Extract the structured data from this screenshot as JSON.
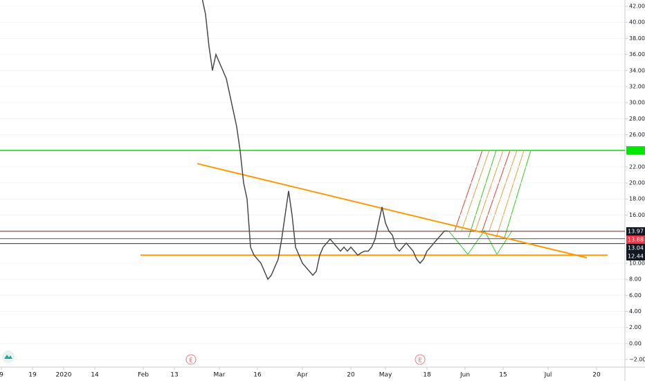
{
  "chart_data": {
    "type": "line",
    "categories": [
      "9",
      null,
      null,
      null,
      null,
      null,
      null,
      null,
      null,
      "19",
      null,
      null,
      null,
      null,
      null,
      null,
      null,
      null,
      "2020",
      null,
      null,
      null,
      null,
      null,
      null,
      null,
      null,
      "14",
      null,
      null,
      null,
      null,
      null,
      null,
      null,
      null,
      null,
      null,
      null,
      null,
      null,
      "Feb",
      null,
      null,
      null,
      null,
      null,
      null,
      null,
      null,
      "13",
      null,
      null,
      null,
      null,
      null,
      null,
      null,
      null,
      null,
      null,
      null,
      null,
      "Mar",
      null,
      null,
      null,
      null,
      null,
      null,
      null,
      null,
      null,
      null,
      "16",
      null,
      null,
      null,
      null,
      null,
      null,
      null,
      null,
      null,
      null,
      null,
      null,
      "Apr",
      null,
      null,
      null,
      null,
      null,
      null,
      null,
      null,
      null,
      null,
      null,
      null,
      null,
      "20",
      null,
      null,
      null,
      null,
      null,
      null,
      null,
      null,
      null,
      "May",
      null,
      null,
      null,
      null,
      null,
      null,
      null,
      null,
      null,
      null,
      null,
      "18",
      null,
      null,
      null,
      null,
      null,
      null,
      null,
      null,
      null,
      null,
      "Jun",
      null,
      null,
      null,
      null,
      null,
      null,
      null,
      null,
      null,
      null,
      "15",
      null,
      null,
      null,
      null,
      null,
      null,
      null,
      null,
      null,
      null,
      null,
      null,
      "Jul",
      null,
      null,
      null,
      null,
      null,
      null,
      null,
      null,
      null,
      null,
      null,
      null,
      null,
      "20",
      null,
      null,
      null,
      null,
      null,
      null,
      null,
      null
    ],
    "series": [
      {
        "color": "#4a4a4a",
        "values": [
          null,
          null,
          null,
          null,
          null,
          null,
          null,
          null,
          null,
          null,
          null,
          null,
          null,
          null,
          null,
          null,
          null,
          null,
          null,
          null,
          null,
          null,
          null,
          null,
          null,
          null,
          null,
          null,
          null,
          null,
          null,
          null,
          null,
          null,
          null,
          null,
          null,
          null,
          null,
          null,
          null,
          null,
          null,
          null,
          null,
          null,
          null,
          null,
          null,
          null,
          null,
          null,
          null,
          null,
          null,
          null,
          null,
          null,
          43,
          41,
          37,
          34,
          36,
          35,
          34,
          33,
          31,
          29,
          27,
          24,
          20,
          18,
          12,
          11,
          10.5,
          10,
          9,
          8,
          8.5,
          9.5,
          10.5,
          13,
          16,
          19,
          16,
          12,
          11,
          10,
          9.5,
          9,
          8.5,
          9,
          11,
          12,
          12.5,
          13,
          12.5,
          12,
          11.5,
          12,
          11.5,
          12,
          11.5,
          11,
          11.3,
          11.5,
          11.5,
          12,
          13,
          15,
          17,
          15,
          14,
          13.5,
          12,
          11.5,
          12,
          12.5,
          12,
          11.5,
          10.5,
          10,
          10.5,
          11.5,
          12,
          12.5,
          13,
          13.5,
          14,
          14,
          null,
          null,
          null,
          null,
          null,
          null,
          null,
          null,
          null,
          null,
          null,
          null,
          null,
          null,
          null,
          null,
          null,
          null,
          null,
          null,
          null,
          null,
          null,
          null,
          null,
          null,
          null,
          null,
          null,
          null,
          null,
          null,
          null,
          null,
          null,
          null,
          null,
          null,
          null,
          null,
          null,
          null,
          null,
          null,
          null,
          null,
          null,
          null,
          null,
          null,
          null
        ]
      }
    ],
    "ylim": [
      -2.6,
      43.3
    ],
    "yticks": [
      {
        "value": 42,
        "label": "42.00"
      },
      {
        "value": 40,
        "label": "40.00"
      },
      {
        "value": 38,
        "label": "38.00"
      },
      {
        "value": 36,
        "label": "36.00"
      },
      {
        "value": 34,
        "label": "34.00"
      },
      {
        "value": 32,
        "label": "32.00"
      },
      {
        "value": 30,
        "label": "30.00"
      },
      {
        "value": 28,
        "label": "28.00"
      },
      {
        "value": 26,
        "label": "26.00"
      },
      {
        "value": 24,
        "label": "24.00"
      },
      {
        "value": 22,
        "label": "22.00"
      },
      {
        "value": 20,
        "label": "20.00"
      },
      {
        "value": 18,
        "label": "18.00"
      },
      {
        "value": 16,
        "label": "16.00"
      },
      {
        "value": 10,
        "label": "10.00"
      },
      {
        "value": 8,
        "label": "8.00"
      },
      {
        "value": 6,
        "label": "6.00"
      },
      {
        "value": 4,
        "label": "4.00"
      },
      {
        "value": 2,
        "label": "2.00"
      },
      {
        "value": 0,
        "label": "0.00"
      },
      {
        "value": -2,
        "label": "−2.00"
      }
    ],
    "levels": [
      {
        "value": 24.05,
        "color": "#00e600"
      },
      {
        "value": 13.97,
        "color": "#8b1a1a"
      },
      {
        "value": 13.04,
        "color": "#555555"
      },
      {
        "value": 12.44,
        "color": "#333333"
      }
    ],
    "price_labels": [
      {
        "value": 13.97,
        "color": "#131722"
      },
      {
        "value": 13.88,
        "color": "#f23645"
      },
      {
        "value": 13.04,
        "color": "#131722"
      },
      {
        "value": 12.44,
        "color": "#131722"
      }
    ],
    "support_value": 11.0,
    "trendline_values": [
      22.4,
      10.68
    ],
    "events": [
      "E",
      "E"
    ]
  }
}
